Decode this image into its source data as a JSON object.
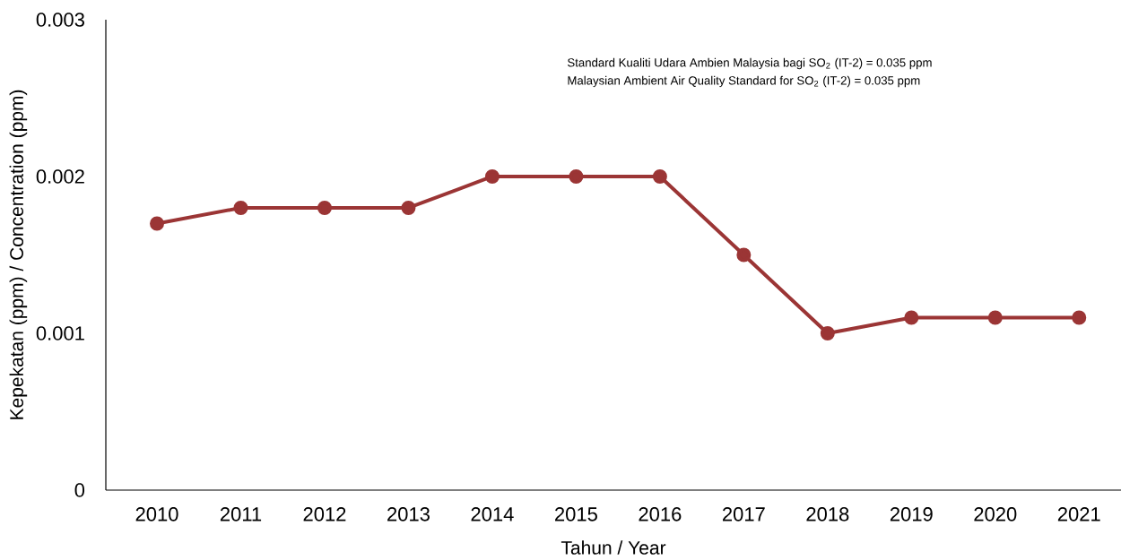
{
  "chart_data": {
    "type": "line",
    "xlabel": "Tahun / Year",
    "ylabel": "Kepekatan (ppm) / Concentration (ppm)",
    "annotations": [
      "Standard Kualiti Udara Ambien Malaysia bagi SO$_{2}$ (IT-2) = 0.035 ppm",
      "Malaysian Ambient Air Quality Standard for SO$_{2}$ (IT-2) = 0.035 ppm"
    ],
    "categories": [
      "2010",
      "2011",
      "2012",
      "2013",
      "2014",
      "2015",
      "2016",
      "2017",
      "2018",
      "2019",
      "2020",
      "2021"
    ],
    "values": [
      0.0017,
      0.0018,
      0.0018,
      0.0018,
      0.002,
      0.002,
      0.002,
      0.0015,
      0.001,
      0.0011,
      0.0011,
      0.0011
    ],
    "color": "#9b3535",
    "ylim": [
      0,
      0.003
    ],
    "yticks": [
      0,
      0.001,
      0.002,
      0.003
    ],
    "grid": false,
    "marker": "circle",
    "line_style": "solid"
  }
}
